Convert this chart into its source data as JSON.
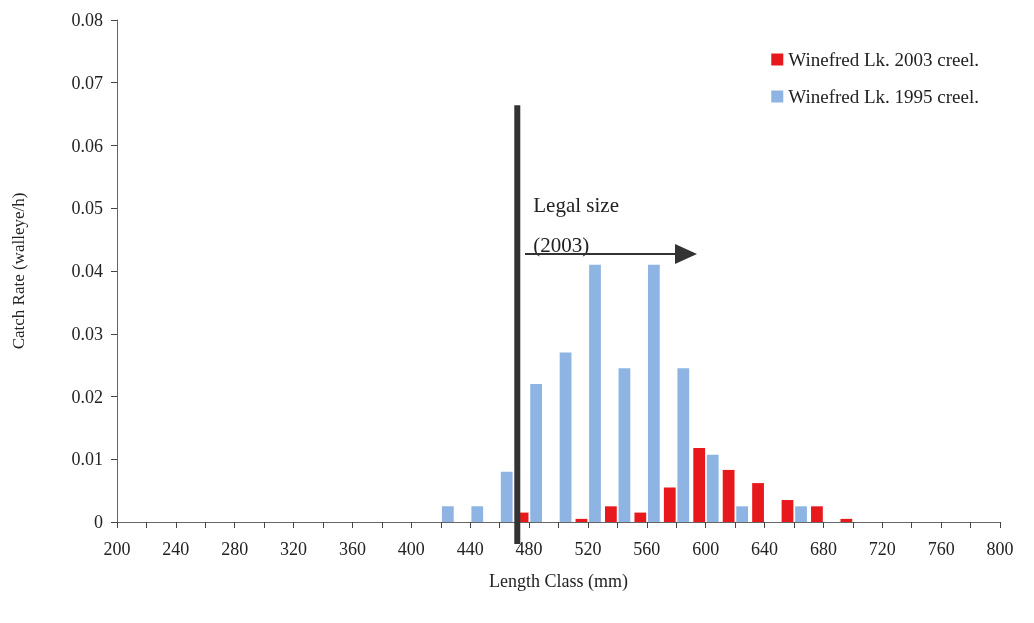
{
  "chart_data": {
    "type": "histogram",
    "xlabel": "Length Class (mm)",
    "ylabel": "Catch Rate (walleye/h)",
    "bins": [
      200,
      220,
      240,
      260,
      280,
      300,
      320,
      340,
      360,
      380,
      400,
      420,
      440,
      460,
      480,
      500,
      520,
      540,
      560,
      580,
      600,
      620,
      640,
      660,
      680,
      700,
      720,
      740,
      760,
      780,
      800
    ],
    "series": [
      {
        "name": "Winefred Lk. 2003 creel.",
        "color": "#e8191c",
        "values": [
          0,
          0,
          0,
          0,
          0,
          0,
          0,
          0,
          0,
          0,
          0,
          0,
          0,
          0.0015,
          0,
          0.0005,
          0.0025,
          0.0015,
          0.0055,
          0.0118,
          0.0083,
          0.0062,
          0.0035,
          0.0025,
          0.0005,
          0,
          0,
          0,
          0,
          0
        ]
      },
      {
        "name": "Winefred Lk. 1995 creel.",
        "color": "#8db4e2",
        "values": [
          0,
          0,
          0,
          0,
          0,
          0,
          0,
          0,
          0,
          0,
          0,
          0.0025,
          0.0025,
          0.008,
          0.022,
          0.027,
          0.041,
          0.0245,
          0.041,
          0.0245,
          0.0107,
          0.0025,
          0,
          0.0025,
          0,
          0,
          0,
          0,
          0,
          0
        ]
      }
    ],
    "xlim": [
      200,
      800
    ],
    "xticks": [
      200,
      {
        "value": 220,
        "label": null
      },
      240,
      {
        "value": 260,
        "label": null
      },
      280,
      {
        "value": 300,
        "label": null
      },
      320,
      {
        "value": 340,
        "label": null
      },
      360,
      {
        "value": 380,
        "label": null
      },
      400,
      {
        "value": 420,
        "label": null
      },
      440,
      {
        "value": 460,
        "label": null
      },
      480,
      {
        "value": 500,
        "label": null
      },
      520,
      {
        "value": 540,
        "label": null
      },
      560,
      {
        "value": 580,
        "label": null
      },
      600,
      {
        "value": 620,
        "label": null
      },
      640,
      {
        "value": 660,
        "label": null
      },
      680,
      {
        "value": 700,
        "label": null
      },
      720,
      {
        "value": 740,
        "label": null
      },
      760,
      {
        "value": 780,
        "label": null
      },
      800
    ],
    "ylim": [
      0,
      0.08
    ],
    "yticks": [
      0,
      0.01,
      0.02,
      0.03,
      0.04,
      0.05,
      0.06,
      0.07,
      0.08
    ],
    "ref_lines": [
      {
        "axis": "x",
        "value": 472,
        "color": "#333333"
      }
    ],
    "annotations": [
      "Legal size (2003)"
    ],
    "legend": "top right",
    "grid": false
  }
}
